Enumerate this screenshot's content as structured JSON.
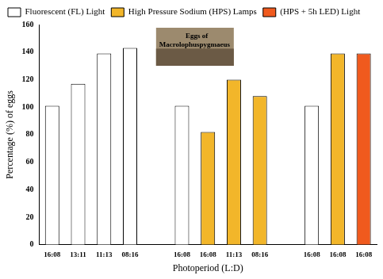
{
  "chart_data": {
    "type": "bar",
    "categories": [
      "16:08",
      "13:11",
      "11:13",
      "08:16",
      null,
      "16:08",
      "16:08",
      "11:13",
      "08:16",
      null,
      "16:08",
      "16:08",
      "16:08"
    ],
    "series": [
      {
        "name": "Fluorescent (FL) Light",
        "color": "#ffffff",
        "values": [
          101,
          117,
          139,
          143,
          null,
          101,
          null,
          null,
          null,
          null,
          101,
          null,
          null
        ]
      },
      {
        "name": "High Pressure Sodium (HPS) Lamps",
        "color": "#f2b62a",
        "values": [
          null,
          null,
          null,
          null,
          null,
          null,
          82,
          120,
          108,
          null,
          null,
          139,
          null
        ]
      },
      {
        "name": "(HPS + 5h LED) Light",
        "color": "#f05a1e",
        "values": [
          null,
          null,
          null,
          null,
          null,
          null,
          null,
          null,
          null,
          null,
          null,
          null,
          139
        ]
      }
    ],
    "x_label": "Photoperiod (L:D)",
    "y_label": "Percentage (%) of eggs",
    "annotation": [
      "Eggs of",
      "Macrolophuspygmaeus"
    ],
    "ylim": [
      0,
      160
    ],
    "yticks": [
      0,
      20,
      40,
      60,
      80,
      100,
      120,
      140,
      160
    ],
    "grid": false,
    "legend": "top"
  }
}
